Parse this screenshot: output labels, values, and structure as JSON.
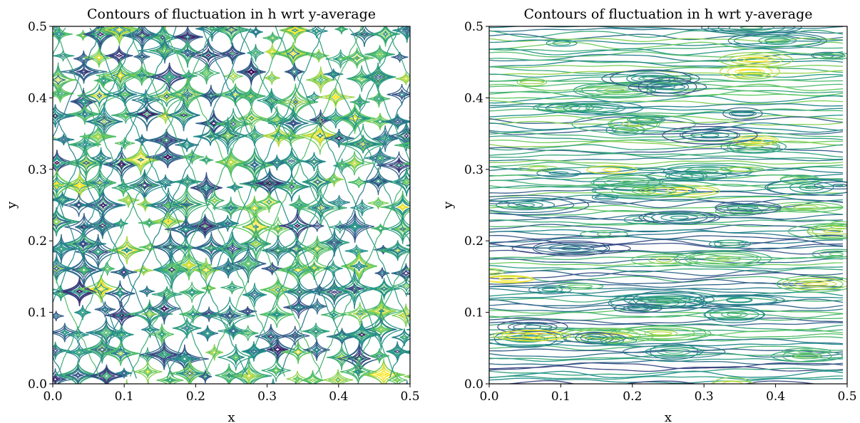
{
  "chart_data": [
    {
      "type": "contour",
      "title": "Contours of fluctuation in h wrt y-average",
      "xlabel": "x",
      "ylabel": "y",
      "xlim": [
        0.0,
        0.5
      ],
      "ylim": [
        0.0,
        0.5
      ],
      "xticks": [
        "0.0",
        "0.1",
        "0.2",
        "0.3",
        "0.4",
        "0.5"
      ],
      "yticks": [
        "0.0",
        "0.1",
        "0.2",
        "0.3",
        "0.4",
        "0.5"
      ],
      "colormap": "viridis",
      "pattern": "diamond-lattice",
      "grid": false
    },
    {
      "type": "contour",
      "title": "Contours of fluctuation in h wrt y-average",
      "xlabel": "x",
      "ylabel": "y",
      "xlim": [
        0.0,
        0.5
      ],
      "ylim": [
        0.0,
        0.5
      ],
      "xticks": [
        "0.0",
        "0.1",
        "0.2",
        "0.3",
        "0.4",
        "0.5"
      ],
      "yticks": [
        "0.0",
        "0.1",
        "0.2",
        "0.3",
        "0.4",
        "0.5"
      ],
      "colormap": "viridis",
      "pattern": "horizontal-streaks",
      "grid": false
    }
  ]
}
